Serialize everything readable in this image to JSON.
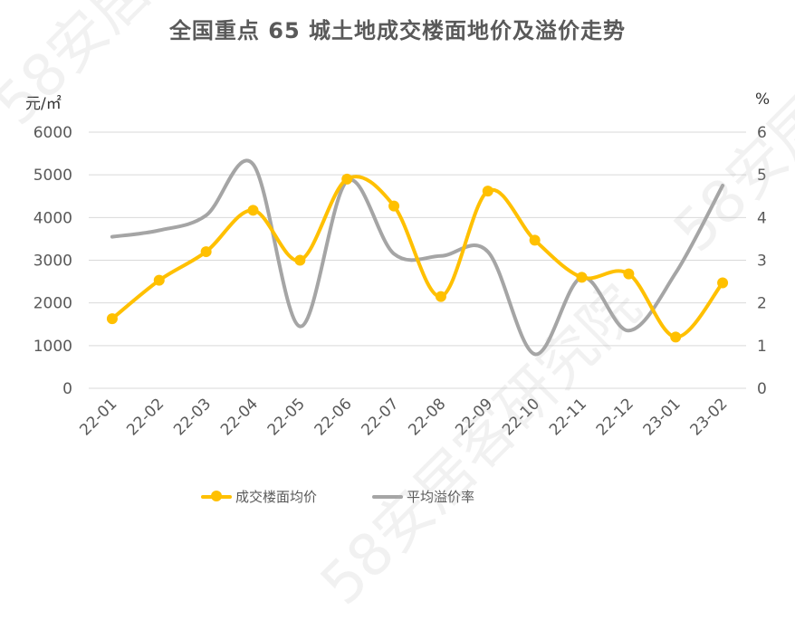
{
  "chart_data": {
    "type": "line",
    "title": "全国重点 65 城土地成交楼面地价及溢价走势",
    "ylabel_left": "元/㎡",
    "ylabel_right": "%",
    "categories": [
      "22-01",
      "22-02",
      "22-03",
      "22-04",
      "22-05",
      "22-06",
      "22-07",
      "22-08",
      "22-09",
      "22-10",
      "22-11",
      "22-12",
      "23-01",
      "23-02"
    ],
    "ylim_left": [
      0,
      6000
    ],
    "yticks_left": [
      "0",
      "1000",
      "2000",
      "3000",
      "4000",
      "5000",
      "6000"
    ],
    "ylim_right": [
      0,
      6
    ],
    "yticks_right": [
      "0",
      "1",
      "2",
      "3",
      "4",
      "5",
      "6"
    ],
    "grid": true,
    "legend_position": "bottom",
    "series": [
      {
        "name": "成交楼面均价",
        "axis": "left",
        "color": "#FFC000",
        "markers": true,
        "values": [
          1630,
          2530,
          3200,
          4170,
          3000,
          4900,
          4270,
          2150,
          4620,
          3470,
          2600,
          2680,
          1200,
          2470
        ]
      },
      {
        "name": "平均溢价率",
        "axis": "right",
        "color": "#A5A5A5",
        "markers": false,
        "values": [
          3.55,
          3.7,
          4.05,
          5.25,
          1.45,
          4.85,
          3.15,
          3.1,
          3.2,
          0.8,
          2.6,
          1.35,
          2.7,
          4.75
        ]
      }
    ]
  },
  "watermark": "58安居客研究院"
}
